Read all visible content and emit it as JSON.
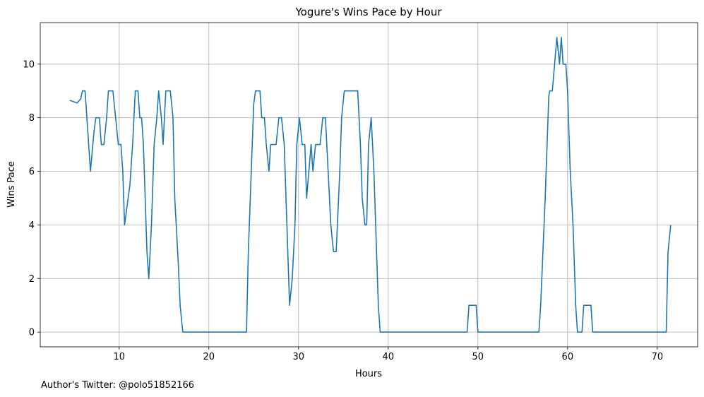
{
  "credit": "Author's Twitter: @polo51852166",
  "chart_data": {
    "type": "line",
    "title": "Yogure's Wins Pace by Hour",
    "xlabel": "Hours",
    "ylabel": "Wins Pace",
    "xlim": [
      1.2,
      74.5
    ],
    "ylim": [
      -0.55,
      11.55
    ],
    "xticks": [
      10,
      20,
      30,
      40,
      50,
      60,
      70
    ],
    "yticks": [
      0,
      2,
      4,
      6,
      8,
      10
    ],
    "grid": true,
    "line_color": "#1f77b4",
    "series": [
      {
        "points": [
          [
            4.5,
            8.65
          ],
          [
            5.3,
            8.55
          ],
          [
            5.7,
            8.7
          ],
          [
            5.9,
            9
          ],
          [
            6.2,
            9
          ],
          [
            6.5,
            7.5
          ],
          [
            6.8,
            6
          ],
          [
            7.2,
            7.5
          ],
          [
            7.4,
            8
          ],
          [
            7.8,
            8
          ],
          [
            8.0,
            7
          ],
          [
            8.3,
            7
          ],
          [
            8.6,
            8
          ],
          [
            8.8,
            9
          ],
          [
            9.3,
            9
          ],
          [
            9.6,
            8
          ],
          [
            9.9,
            7
          ],
          [
            10.2,
            7
          ],
          [
            10.4,
            6
          ],
          [
            10.6,
            4
          ],
          [
            11.2,
            5.5
          ],
          [
            11.5,
            7
          ],
          [
            11.8,
            9
          ],
          [
            12.1,
            9
          ],
          [
            12.3,
            8
          ],
          [
            12.5,
            8
          ],
          [
            12.7,
            7
          ],
          [
            12.9,
            5
          ],
          [
            13.1,
            3
          ],
          [
            13.3,
            2
          ],
          [
            13.6,
            4
          ],
          [
            13.9,
            7
          ],
          [
            14.2,
            8
          ],
          [
            14.4,
            9
          ],
          [
            14.7,
            8
          ],
          [
            14.9,
            7
          ],
          [
            15.2,
            9
          ],
          [
            15.7,
            9
          ],
          [
            16.0,
            8
          ],
          [
            16.2,
            5
          ],
          [
            16.6,
            2.5
          ],
          [
            16.8,
            1
          ],
          [
            17.1,
            0
          ],
          [
            24.2,
            0
          ],
          [
            24.4,
            3
          ],
          [
            25.0,
            8.5
          ],
          [
            25.2,
            9
          ],
          [
            25.7,
            9
          ],
          [
            25.9,
            8
          ],
          [
            26.2,
            8
          ],
          [
            26.4,
            7
          ],
          [
            26.7,
            6
          ],
          [
            26.9,
            7
          ],
          [
            27.5,
            7
          ],
          [
            27.8,
            8
          ],
          [
            28.1,
            8
          ],
          [
            28.4,
            7
          ],
          [
            28.7,
            4
          ],
          [
            29.0,
            1
          ],
          [
            29.3,
            2
          ],
          [
            29.6,
            4
          ],
          [
            29.8,
            7
          ],
          [
            30.1,
            8
          ],
          [
            30.4,
            7
          ],
          [
            30.7,
            7
          ],
          [
            30.9,
            5
          ],
          [
            31.4,
            7
          ],
          [
            31.6,
            6
          ],
          [
            31.9,
            7
          ],
          [
            32.4,
            7
          ],
          [
            32.7,
            8
          ],
          [
            33.0,
            8
          ],
          [
            33.3,
            6
          ],
          [
            33.6,
            4
          ],
          [
            33.9,
            3
          ],
          [
            34.2,
            3
          ],
          [
            34.6,
            6
          ],
          [
            34.8,
            8
          ],
          [
            35.1,
            9
          ],
          [
            36.6,
            9
          ],
          [
            36.9,
            7
          ],
          [
            37.1,
            5
          ],
          [
            37.4,
            4
          ],
          [
            37.6,
            4
          ],
          [
            37.8,
            7
          ],
          [
            38.1,
            8
          ],
          [
            38.4,
            6
          ],
          [
            38.6,
            4
          ],
          [
            38.9,
            1
          ],
          [
            39.1,
            0
          ],
          [
            48.8,
            0
          ],
          [
            49.0,
            1
          ],
          [
            49.8,
            1
          ],
          [
            50.0,
            0
          ],
          [
            56.8,
            0
          ],
          [
            57.0,
            1
          ],
          [
            57.5,
            5
          ],
          [
            57.9,
            8.8
          ],
          [
            58.0,
            9
          ],
          [
            58.3,
            9
          ],
          [
            58.6,
            10.2
          ],
          [
            58.8,
            11
          ],
          [
            59.1,
            10
          ],
          [
            59.3,
            11
          ],
          [
            59.5,
            10
          ],
          [
            59.8,
            10
          ],
          [
            60.0,
            9
          ],
          [
            60.3,
            6
          ],
          [
            60.6,
            4
          ],
          [
            60.9,
            1
          ],
          [
            61.1,
            0
          ],
          [
            61.6,
            0
          ],
          [
            61.8,
            1
          ],
          [
            62.6,
            1
          ],
          [
            62.8,
            0
          ],
          [
            71.0,
            0
          ],
          [
            71.2,
            3
          ],
          [
            71.5,
            4
          ]
        ]
      }
    ]
  }
}
